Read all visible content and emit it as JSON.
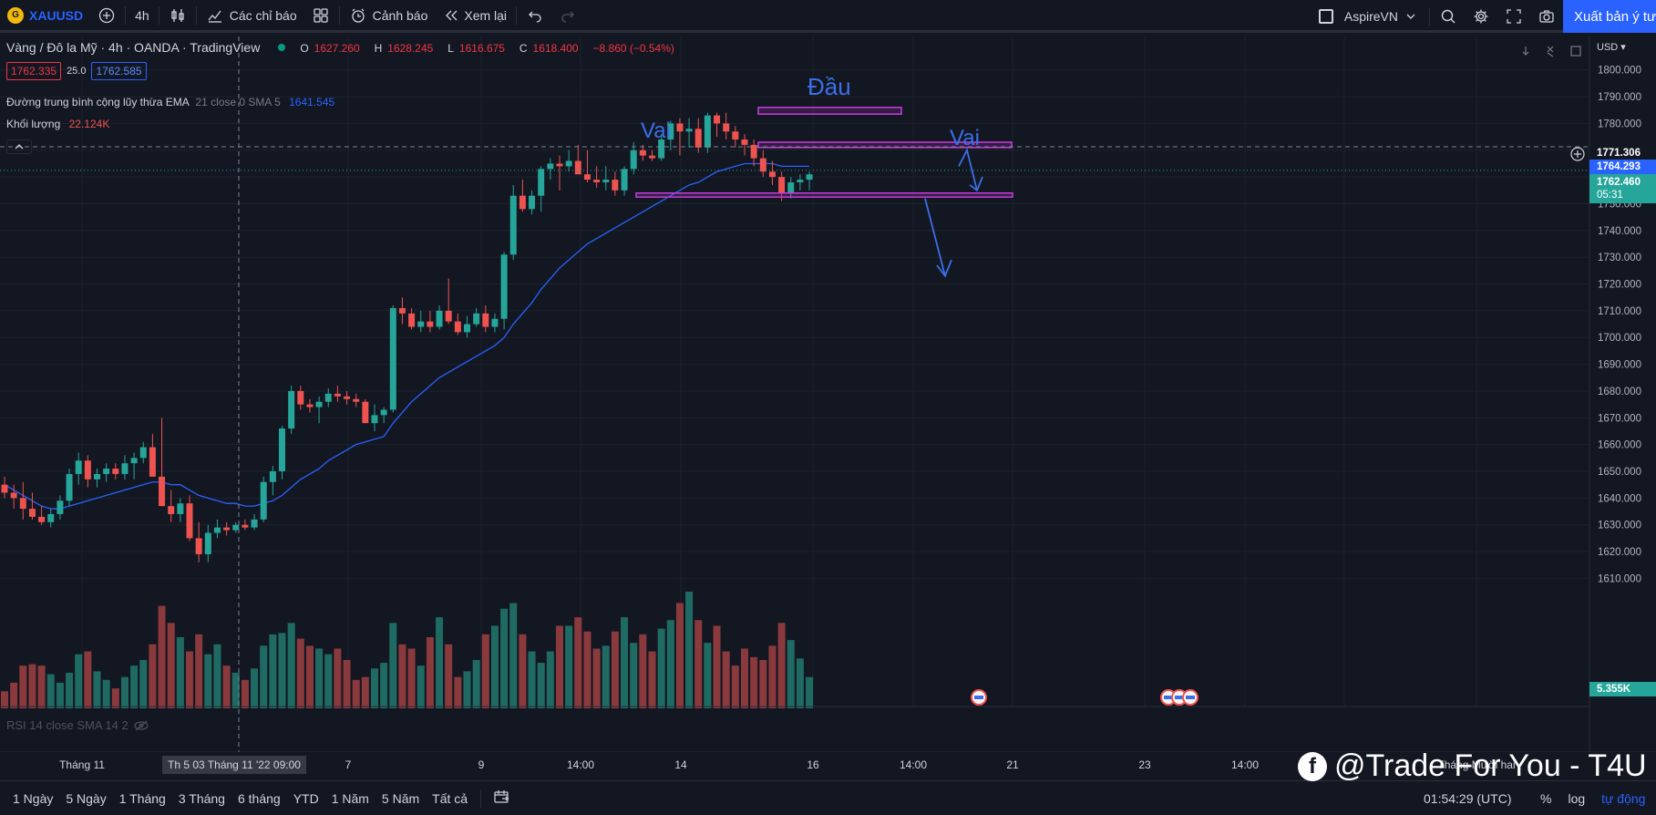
{
  "toolbar": {
    "symbol": "XAUUSD",
    "symbol_logo_letter": "G",
    "interval": "4h",
    "indicators_label": "Các chỉ báo",
    "alerts_label": "Cảnh báo",
    "replay_label": "Xem lại",
    "account_name": "AspireVN",
    "publish_label": "Xuất bản ý tư"
  },
  "legend": {
    "title": "Vàng / Đô la Mỹ · 4h · OANDA · TradingView",
    "o_key": "O",
    "o_val": "1627.260",
    "h_key": "H",
    "h_val": "1628.245",
    "l_key": "L",
    "l_val": "1616.675",
    "c_key": "C",
    "c_val": "1618.400",
    "change": "−8.860 (−0.54%)",
    "bid": "1762.335",
    "spread": "25.0",
    "ask": "1762.585",
    "ema_label": "Đường trung bình cộng lũy thừa EMA",
    "ema_params": "21 close 0 SMA 5",
    "ema_value": "1641.545",
    "volume_label": "Khối lượng",
    "volume_value": "22.124K",
    "collapse_icon": "chevron-up-icon"
  },
  "annotations": {
    "head": "Đầu",
    "left_shoulder": "Vai",
    "right_shoulder": "Vai"
  },
  "rsi_label": "RSI 14 close SMA 14 2",
  "price_scale": {
    "currency": "USD",
    "ticks": [
      "1800.000",
      "1790.000",
      "1780.000",
      "1770.000",
      "1760.000",
      "1750.000",
      "1740.000",
      "1730.000",
      "1720.000",
      "1710.000",
      "1700.000",
      "1690.000",
      "1680.000",
      "1670.000",
      "1660.000",
      "1650.000",
      "1640.000",
      "1630.000",
      "1620.000",
      "1610.000"
    ],
    "crosshair_price": "1771.306",
    "ema_price": "1764.293",
    "last_price": "1762.460",
    "countdown": "05:31",
    "volume_value": "5.355K"
  },
  "time_axis": {
    "labels": [
      "Tháng 11",
      "7",
      "9",
      "14:00",
      "14",
      "16",
      "14:00",
      "21",
      "23",
      "14:00",
      "Tháng Mười hai"
    ],
    "cursor_time": "Th 5 03 Tháng 11 '22   09:00"
  },
  "bottom_bar": {
    "ranges": [
      "1 Ngày",
      "5 Ngày",
      "1 Tháng",
      "3 Tháng",
      "6 tháng",
      "YTD",
      "1 Năm",
      "5 Năm",
      "Tất cả"
    ],
    "clock": "01:54:29 (UTC)",
    "percent": "%",
    "log": "log",
    "auto": "tự động"
  },
  "watermark": {
    "text": "@Trade For You - T4U",
    "fb_letter": "f"
  },
  "colors": {
    "up": "#26a69a",
    "down": "#ef5350",
    "ema": "#2962ff",
    "annotation": "#3b6fe8",
    "box": "#c83cdc",
    "background": "#131722"
  },
  "chart_data": {
    "type": "candlestick",
    "symbol": "XAUUSD",
    "interval": "4h",
    "ylim": [
      1604,
      1804
    ],
    "candles": [
      [
        1645,
        1648,
        1640,
        1642
      ],
      [
        1642,
        1645,
        1636,
        1640
      ],
      [
        1640,
        1646,
        1632,
        1636
      ],
      [
        1636,
        1642,
        1632,
        1633
      ],
      [
        1633,
        1637,
        1630,
        1631
      ],
      [
        1631,
        1636,
        1629,
        1634
      ],
      [
        1634,
        1641,
        1632,
        1639
      ],
      [
        1639,
        1651,
        1637,
        1649
      ],
      [
        1649,
        1657,
        1645,
        1654
      ],
      [
        1654,
        1656,
        1644,
        1647
      ],
      [
        1647,
        1651,
        1644,
        1649
      ],
      [
        1649,
        1653,
        1646,
        1651
      ],
      [
        1651,
        1653,
        1647,
        1649
      ],
      [
        1649,
        1656,
        1647,
        1653
      ],
      [
        1653,
        1657,
        1647,
        1655
      ],
      [
        1655,
        1661,
        1653,
        1659
      ],
      [
        1659,
        1664,
        1649,
        1648
      ],
      [
        1648,
        1670,
        1637,
        1637
      ],
      [
        1637,
        1643,
        1631,
        1634
      ],
      [
        1634,
        1640,
        1631,
        1638
      ],
      [
        1638,
        1641,
        1624,
        1625
      ],
      [
        1625,
        1631,
        1616,
        1619
      ],
      [
        1619,
        1630,
        1616,
        1627
      ],
      [
        1627,
        1632,
        1625,
        1629
      ],
      [
        1629,
        1631,
        1626,
        1628
      ],
      [
        1628,
        1631,
        1627,
        1630
      ],
      [
        1630,
        1632,
        1628,
        1629
      ],
      [
        1629,
        1634,
        1628,
        1632
      ],
      [
        1632,
        1648,
        1631,
        1646
      ],
      [
        1646,
        1652,
        1641,
        1650
      ],
      [
        1650,
        1667,
        1647,
        1666
      ],
      [
        1666,
        1682,
        1664,
        1680
      ],
      [
        1680,
        1682,
        1673,
        1675
      ],
      [
        1675,
        1677,
        1672,
        1674
      ],
      [
        1674,
        1678,
        1668,
        1676
      ],
      [
        1676,
        1681,
        1674,
        1679
      ],
      [
        1679,
        1682,
        1676,
        1678
      ],
      [
        1678,
        1680,
        1675,
        1677
      ],
      [
        1677,
        1679,
        1674,
        1676
      ],
      [
        1676,
        1677,
        1668,
        1668
      ],
      [
        1668,
        1675,
        1665,
        1671
      ],
      [
        1671,
        1674,
        1668,
        1673
      ],
      [
        1673,
        1712,
        1672,
        1711
      ],
      [
        1711,
        1715,
        1705,
        1709
      ],
      [
        1709,
        1711,
        1703,
        1704
      ],
      [
        1704,
        1710,
        1702,
        1706
      ],
      [
        1706,
        1710,
        1702,
        1704
      ],
      [
        1704,
        1712,
        1703,
        1710
      ],
      [
        1710,
        1722,
        1705,
        1706
      ],
      [
        1706,
        1709,
        1701,
        1702
      ],
      [
        1702,
        1708,
        1700,
        1705
      ],
      [
        1705,
        1711,
        1704,
        1709
      ],
      [
        1709,
        1712,
        1702,
        1704
      ],
      [
        1704,
        1709,
        1702,
        1707
      ],
      [
        1707,
        1732,
        1703,
        1731
      ],
      [
        1731,
        1757,
        1729,
        1753
      ],
      [
        1753,
        1759,
        1747,
        1748
      ],
      [
        1748,
        1755,
        1746,
        1753
      ],
      [
        1753,
        1764,
        1747,
        1763
      ],
      [
        1763,
        1767,
        1759,
        1765
      ],
      [
        1765,
        1768,
        1755,
        1764
      ],
      [
        1764,
        1770,
        1762,
        1766
      ],
      [
        1766,
        1772,
        1762,
        1761
      ],
      [
        1761,
        1770,
        1758,
        1759
      ],
      [
        1759,
        1764,
        1756,
        1758
      ],
      [
        1758,
        1764,
        1755,
        1759
      ],
      [
        1759,
        1762,
        1753,
        1755
      ],
      [
        1755,
        1764,
        1753,
        1763
      ],
      [
        1763,
        1773,
        1761,
        1770
      ],
      [
        1770,
        1772,
        1766,
        1768
      ],
      [
        1768,
        1770,
        1766,
        1767
      ],
      [
        1767,
        1776,
        1766,
        1774
      ],
      [
        1774,
        1781,
        1770,
        1780
      ],
      [
        1780,
        1782,
        1768,
        1777
      ],
      [
        1777,
        1782,
        1771,
        1778
      ],
      [
        1778,
        1782,
        1769,
        1771
      ],
      [
        1771,
        1784,
        1769,
        1783
      ],
      [
        1783,
        1784,
        1775,
        1780
      ],
      [
        1780,
        1784,
        1774,
        1777
      ],
      [
        1777,
        1779,
        1771,
        1774
      ],
      [
        1774,
        1776,
        1768,
        1772
      ],
      [
        1772,
        1774,
        1764,
        1767
      ],
      [
        1767,
        1770,
        1760,
        1762
      ],
      [
        1762,
        1766,
        1757,
        1760
      ],
      [
        1760,
        1762,
        1751,
        1754
      ],
      [
        1754,
        1760,
        1752,
        1758
      ],
      [
        1758,
        1761,
        1755,
        1759
      ],
      [
        1759,
        1762,
        1755,
        1761
      ]
    ],
    "ema": [
      1645,
      1643,
      1641,
      1639,
      1637,
      1636,
      1636,
      1637,
      1638,
      1639,
      1640,
      1641,
      1642,
      1643,
      1644,
      1645,
      1646,
      1646,
      1645,
      1645,
      1643,
      1641,
      1640,
      1639,
      1638,
      1638,
      1637,
      1637,
      1638,
      1639,
      1641,
      1644,
      1647,
      1649,
      1651,
      1654,
      1656,
      1658,
      1660,
      1661,
      1662,
      1663,
      1668,
      1672,
      1676,
      1679,
      1682,
      1685,
      1687,
      1689,
      1691,
      1693,
      1695,
      1697,
      1700,
      1705,
      1709,
      1713,
      1718,
      1722,
      1726,
      1729,
      1732,
      1735,
      1737,
      1739,
      1741,
      1743,
      1745,
      1747,
      1749,
      1751,
      1753,
      1755,
      1757,
      1758,
      1760,
      1762,
      1763,
      1764,
      1765,
      1765,
      1765,
      1765,
      1764,
      1764,
      1764,
      1764
    ],
    "volume": [
      12,
      18,
      30,
      31,
      30,
      24,
      18,
      25,
      38,
      40,
      26,
      20,
      14,
      22,
      30,
      34,
      45,
      72,
      60,
      50,
      40,
      52,
      38,
      45,
      30,
      25,
      20,
      28,
      44,
      52,
      53,
      60,
      49,
      44,
      42,
      38,
      42,
      34,
      20,
      22,
      28,
      32,
      60,
      45,
      42,
      30,
      50,
      64,
      45,
      22,
      26,
      34,
      52,
      58,
      70,
      74,
      52,
      40,
      32,
      40,
      58,
      58,
      64,
      54,
      42,
      44,
      54,
      64,
      46,
      52,
      40,
      56,
      62,
      74,
      82,
      62,
      46,
      58,
      40,
      30,
      42,
      36,
      34,
      44,
      60,
      48,
      35,
      22
    ]
  }
}
